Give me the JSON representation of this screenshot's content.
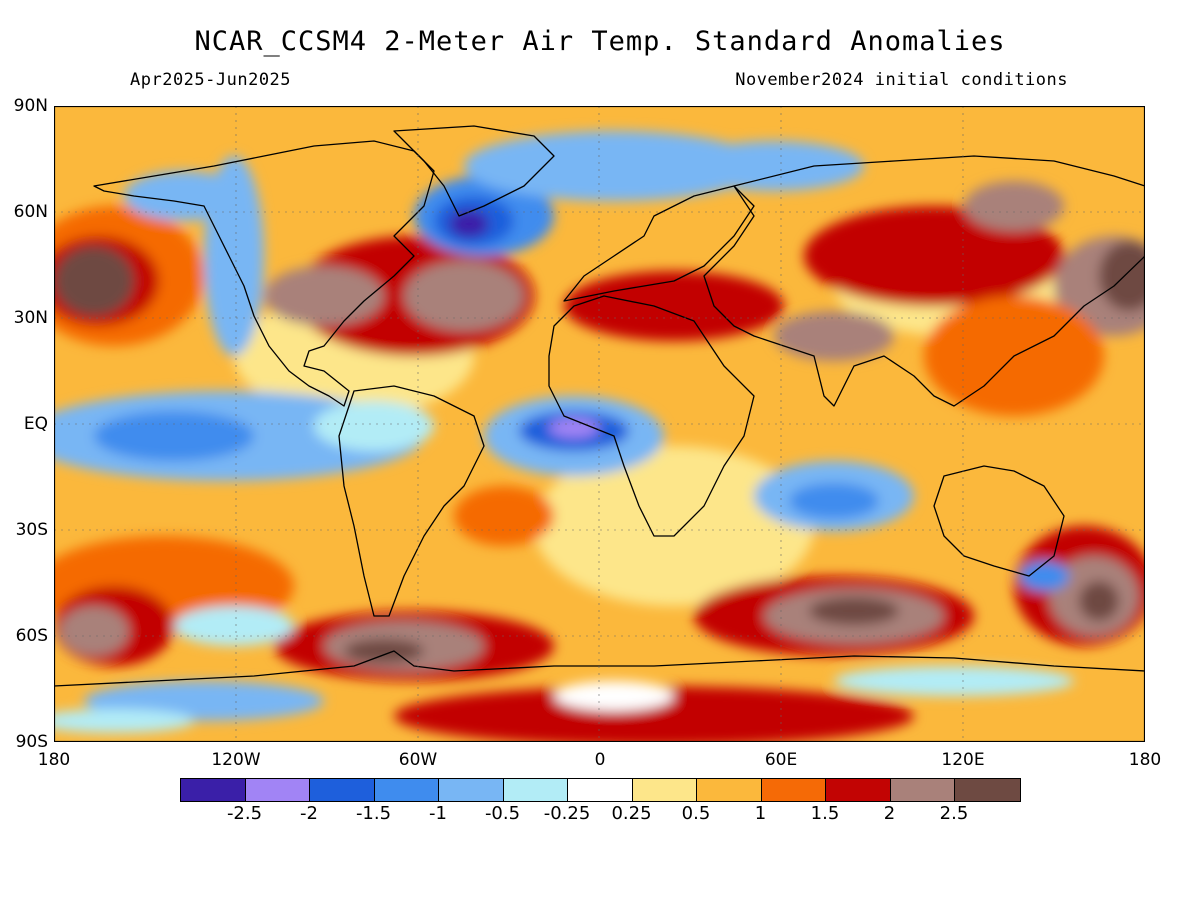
{
  "title": "NCAR_CCSM4 2-Meter Air Temp. Standard Anomalies",
  "period": "Apr2025-Jun2025",
  "initial_conditions": "November2024 initial conditions",
  "lat_labels": [
    "90N",
    "60N",
    "30N",
    "EQ",
    "30S",
    "60S",
    "90S"
  ],
  "lon_labels": [
    "180",
    "120W",
    "60W",
    "0",
    "60E",
    "120E",
    "180"
  ],
  "colorbar": {
    "colors": [
      "#3a1fa8",
      "#a184f5",
      "#1e5fdc",
      "#3f8cee",
      "#78b6f4",
      "#b2ecf6",
      "#ffffff",
      "#fde68a",
      "#fbb83c",
      "#f56a06",
      "#c20403",
      "#a9817a",
      "#6e4a42"
    ],
    "labels": [
      "-2.5",
      "-2",
      "-1.5",
      "-1",
      "-0.5",
      "-0.25",
      "0.25",
      "0.5",
      "1",
      "1.5",
      "2",
      "2.5"
    ]
  }
}
